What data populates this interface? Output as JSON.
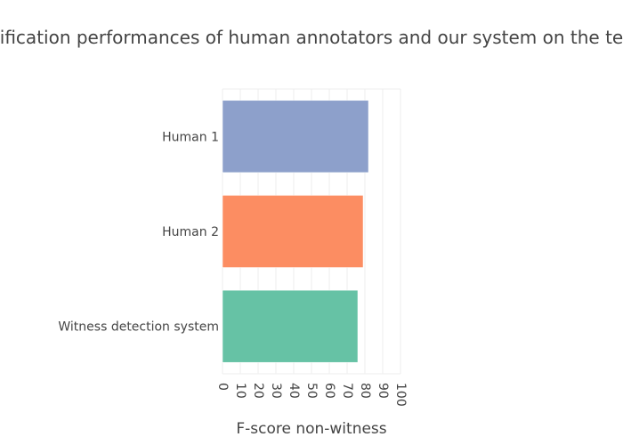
{
  "chart_data": {
    "type": "bar",
    "orientation": "horizontal",
    "title": "ification performances of human annotators and our system on the te",
    "xlabel": "F-score non-witness",
    "ylabel": "",
    "xlim": [
      0,
      100
    ],
    "x_ticks": [
      0,
      10,
      20,
      30,
      40,
      50,
      60,
      70,
      80,
      90,
      100
    ],
    "grid": true,
    "categories": [
      "Human 1",
      "Human 2",
      "Witness detection system"
    ],
    "values": [
      82,
      79,
      76
    ],
    "bar_colors": [
      "#8da0cb",
      "#fc8d62",
      "#66c2a5"
    ],
    "grid_color": "#eeeeee",
    "text_color": "#444444"
  }
}
